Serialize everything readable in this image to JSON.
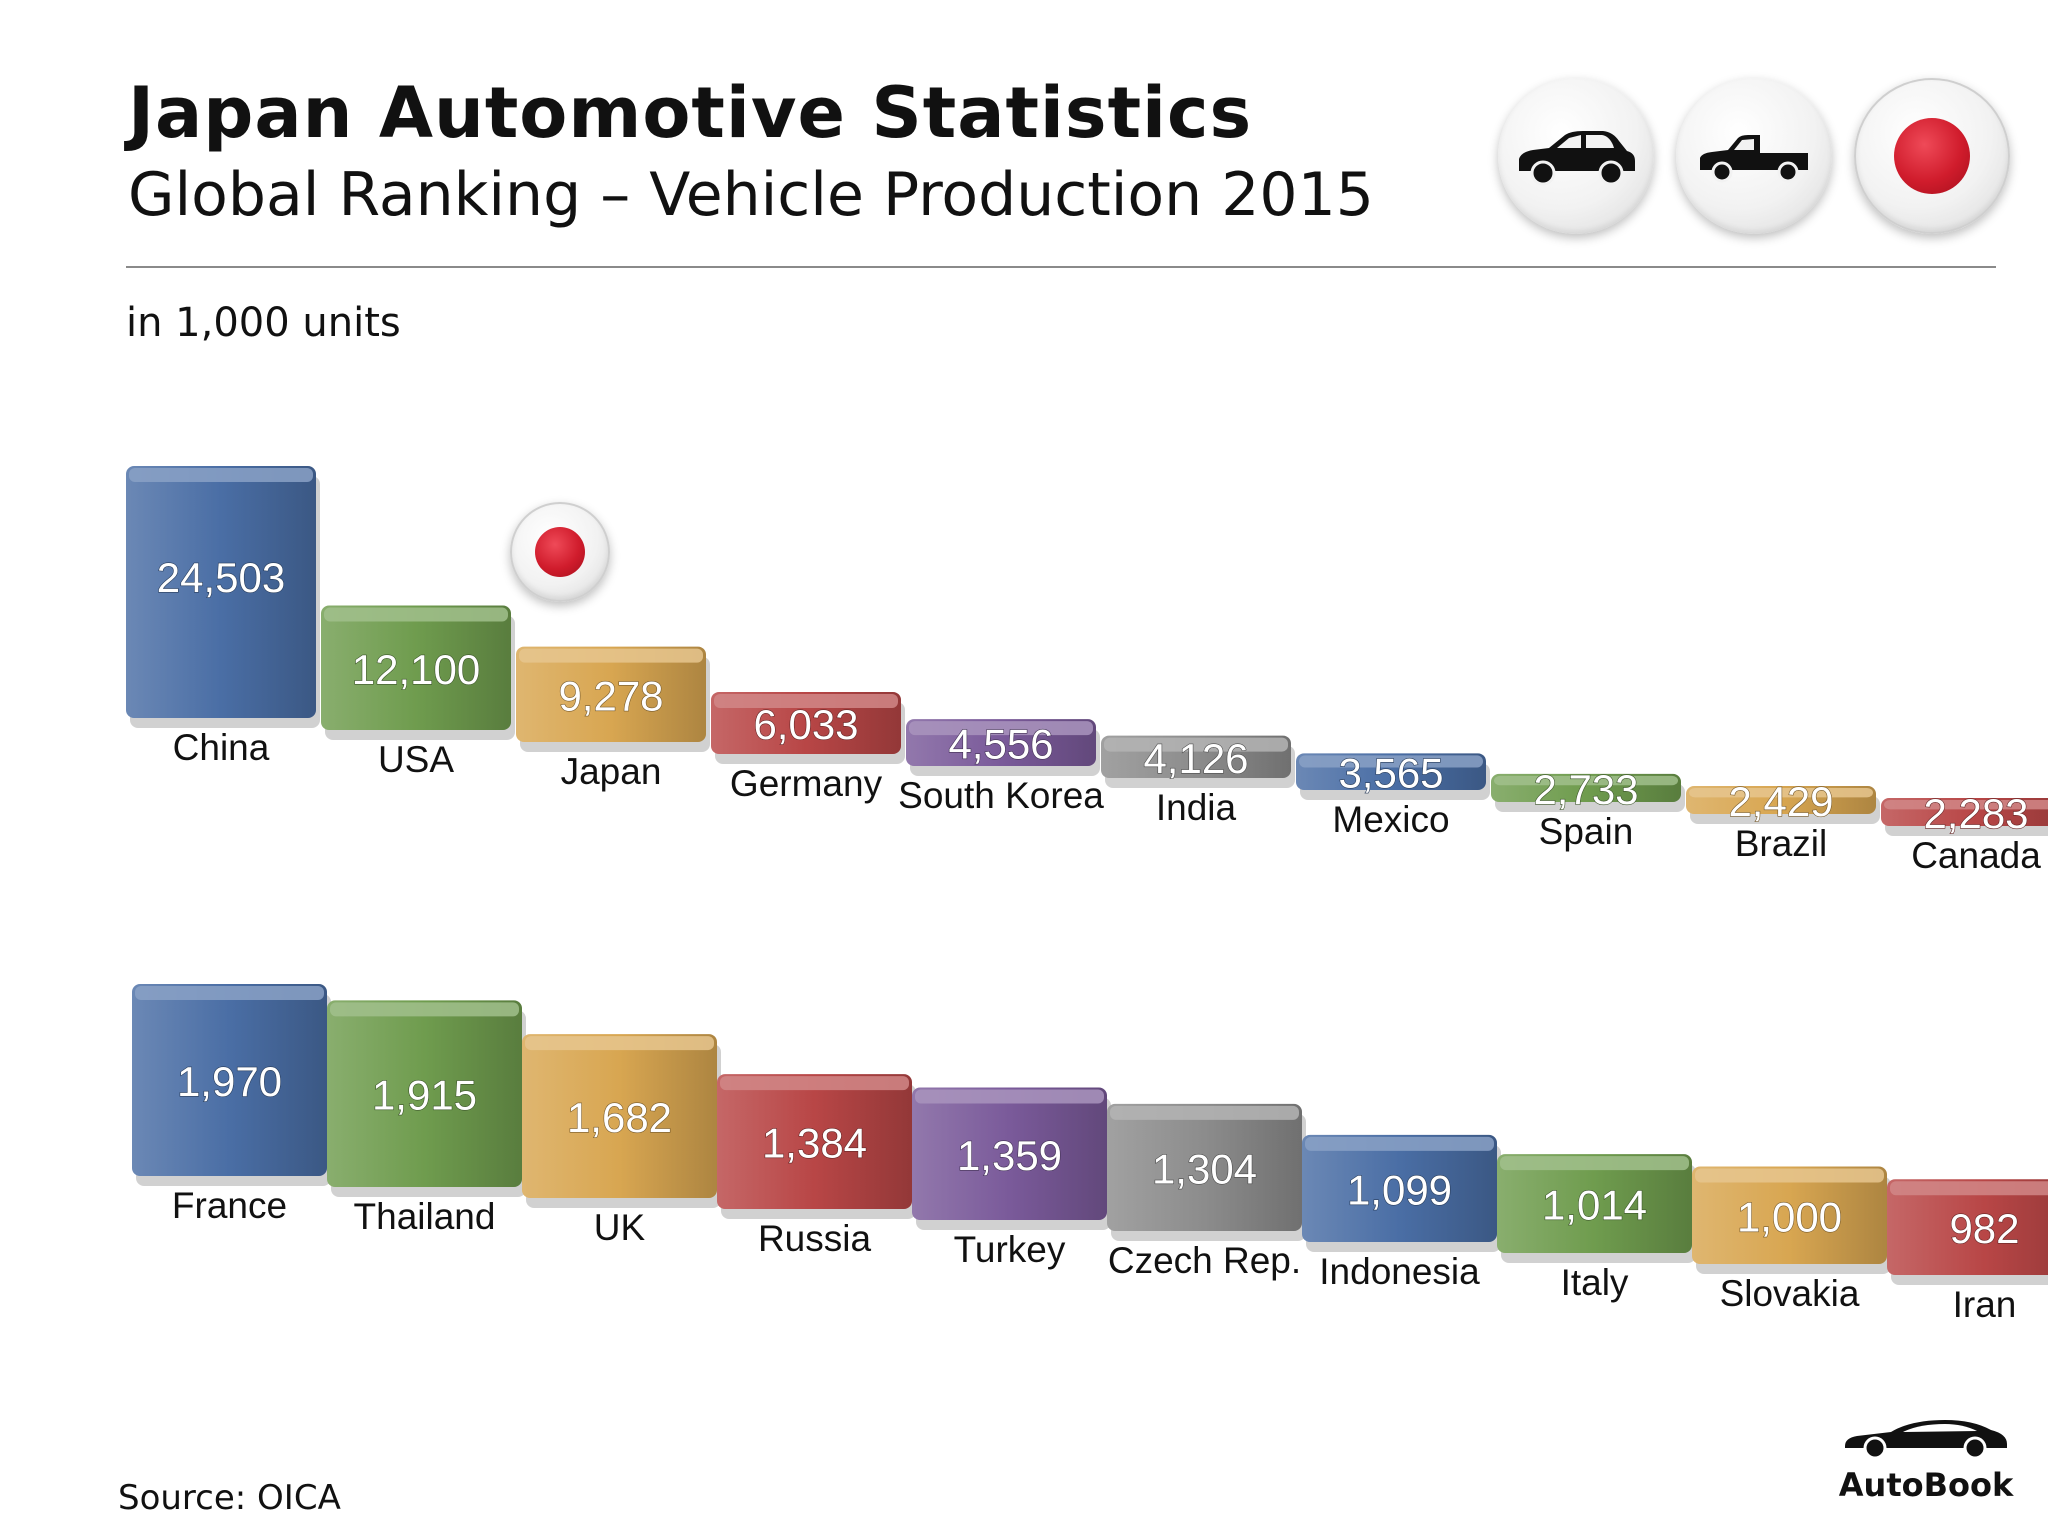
{
  "header": {
    "title": "Japan Automotive Statistics",
    "subtitle": "Global Ranking – Vehicle Production 2015",
    "units": "in 1,000 units"
  },
  "icons": [
    "car-icon",
    "pickup-truck-icon",
    "japan-flag-icon"
  ],
  "footer": {
    "source": "Source:  OICA",
    "brand": "AutoBook"
  },
  "colors": {
    "blue": "#4a6ea5",
    "green": "#6f9c4e",
    "gold": "#d8a651",
    "red": "#b84646",
    "purple": "#7a5a9a",
    "gray": "#8c8c8c",
    "japan_red": "#d01c2c"
  },
  "chart_data": {
    "type": "bar",
    "title": "Global Ranking – Vehicle Production 2015",
    "ylabel": "in 1,000 units",
    "highlight": "Japan",
    "rows": [
      {
        "categories": [
          "China",
          "USA",
          "Japan",
          "Germany",
          "South Korea",
          "India",
          "Mexico",
          "Spain",
          "Brazil",
          "Canada"
        ],
        "values": [
          24503,
          12100,
          9278,
          6033,
          4556,
          4126,
          3565,
          2733,
          2429,
          2283
        ],
        "labels": [
          "24,503",
          "12,100",
          "9,278",
          "6,033",
          "4,556",
          "4,126",
          "3,565",
          "2,733",
          "2,429",
          "2,283"
        ],
        "colors": [
          "blue",
          "green",
          "gold",
          "red",
          "purple",
          "gray",
          "blue",
          "green",
          "gold",
          "red"
        ]
      },
      {
        "categories": [
          "France",
          "Thailand",
          "UK",
          "Russia",
          "Turkey",
          "Czech Rep.",
          "Indonesia",
          "Italy",
          "Slovakia",
          "Iran"
        ],
        "values": [
          1970,
          1915,
          1682,
          1384,
          1359,
          1304,
          1099,
          1014,
          1000,
          982
        ],
        "labels": [
          "1,970",
          "1,915",
          "1,682",
          "1,384",
          "1,359",
          "1,304",
          "1,099",
          "1,014",
          "1,000",
          "982"
        ],
        "colors": [
          "blue",
          "green",
          "gold",
          "red",
          "purple",
          "gray",
          "blue",
          "green",
          "gold",
          "red"
        ]
      }
    ]
  }
}
